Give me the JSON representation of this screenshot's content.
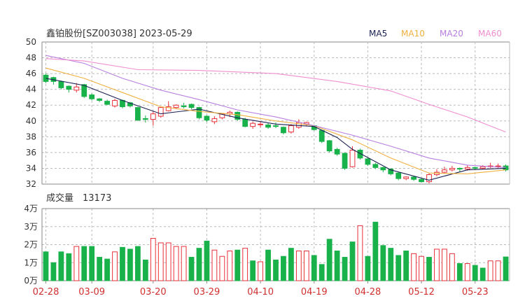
{
  "chart_data": {
    "type": "candlestick",
    "title": "鑫铂股份[SZ003038] 2023-05-29",
    "legend": [
      {
        "name": "MA5",
        "color": "#1a2050"
      },
      {
        "name": "MA10",
        "color": "#f0b040"
      },
      {
        "name": "MA20",
        "color": "#b87ee0"
      },
      {
        "name": "MA60",
        "color": "#f08ecf"
      }
    ],
    "colors": {
      "up": "#e8303a",
      "down": "#19b24a",
      "grid": "#bbbbbb",
      "axis": "#333333",
      "date": "#d03030"
    },
    "price_axis": {
      "ticks": [
        "50",
        "48",
        "46",
        "44",
        "42",
        "40",
        "38",
        "36",
        "34",
        "32"
      ],
      "min": 32,
      "max": 50
    },
    "volume": {
      "label": "成交量",
      "value": "13173",
      "ticks": [
        "4万",
        "3万",
        "2万",
        "1万",
        "0万"
      ],
      "max": 40000,
      "values": [
        16000,
        10000,
        16000,
        15000,
        19000,
        19000,
        19000,
        13000,
        12000,
        16000,
        18500,
        17500,
        19000,
        11500,
        23500,
        21000,
        21000,
        19000,
        19000,
        13000,
        18000,
        22000,
        17000,
        13500,
        16500,
        17000,
        18000,
        11000,
        10500,
        17000,
        11500,
        13500,
        18000,
        16500,
        16500,
        14000,
        9000,
        23000,
        16500,
        13000,
        21500,
        30500,
        13500,
        32500,
        19500,
        18000,
        14000,
        16500,
        15000,
        13500,
        13000,
        17500,
        17500,
        15000,
        9500,
        9500,
        8500,
        7000,
        11000,
        11000,
        13173
      ],
      "up": [
        false,
        false,
        false,
        false,
        true,
        false,
        false,
        false,
        false,
        true,
        false,
        false,
        false,
        false,
        true,
        true,
        true,
        true,
        true,
        false,
        false,
        false,
        true,
        true,
        true,
        false,
        true,
        false,
        true,
        false,
        false,
        false,
        false,
        true,
        true,
        false,
        false,
        false,
        false,
        false,
        false,
        true,
        false,
        false,
        false,
        false,
        false,
        false,
        true,
        true,
        false,
        true,
        true,
        true,
        false,
        true,
        false,
        false,
        true,
        true,
        false
      ]
    },
    "x_labels": [
      "02-28",
      "03-09",
      "03-20",
      "03-29",
      "04-10",
      "04-19",
      "04-28",
      "05-12",
      "05-23"
    ],
    "x_label_index": [
      0,
      6,
      14,
      21,
      28,
      35,
      42,
      49,
      56
    ],
    "candles": [
      [
        45.8,
        45.0,
        46.0,
        44.8
      ],
      [
        45.5,
        45.0,
        45.6,
        44.6
      ],
      [
        45.0,
        44.2,
        45.1,
        44.0
      ],
      [
        44.4,
        44.0,
        44.5,
        43.6
      ],
      [
        43.9,
        44.3,
        44.8,
        43.6
      ],
      [
        44.6,
        43.1,
        44.7,
        42.9
      ],
      [
        43.3,
        42.8,
        43.5,
        42.6
      ],
      [
        42.8,
        42.6,
        42.9,
        42.4
      ],
      [
        42.5,
        42.1,
        42.7,
        42.0
      ],
      [
        41.9,
        42.6,
        42.8,
        41.7
      ],
      [
        42.6,
        41.8,
        42.7,
        41.6
      ],
      [
        42.3,
        41.9,
        42.4,
        41.7
      ],
      [
        41.7,
        40.1,
        41.8,
        40.0
      ],
      [
        40.3,
        40.2,
        40.7,
        39.8
      ],
      [
        40.2,
        40.9,
        41.2,
        39.4
      ],
      [
        40.6,
        41.7,
        41.8,
        40.4
      ],
      [
        41.3,
        41.8,
        42.5,
        41.2
      ],
      [
        41.7,
        42.0,
        42.1,
        41.5
      ],
      [
        41.9,
        41.8,
        42.3,
        41.6
      ],
      [
        42.1,
        41.7,
        42.2,
        41.5
      ],
      [
        41.7,
        40.4,
        41.8,
        40.2
      ],
      [
        40.6,
        40.1,
        40.7,
        39.9
      ],
      [
        39.9,
        40.3,
        40.6,
        39.6
      ],
      [
        40.4,
        40.9,
        41.0,
        40.2
      ],
      [
        40.9,
        41.1,
        41.3,
        40.5
      ],
      [
        41.1,
        40.2,
        41.2,
        40.0
      ],
      [
        40.2,
        39.3,
        40.4,
        39.2
      ],
      [
        39.3,
        39.7,
        39.9,
        39.0
      ],
      [
        39.6,
        39.6,
        39.9,
        39.2
      ],
      [
        39.5,
        39.2,
        39.8,
        39.0
      ],
      [
        39.4,
        39.3,
        39.8,
        39.1
      ],
      [
        39.2,
        38.5,
        39.3,
        38.3
      ],
      [
        38.6,
        39.4,
        39.6,
        38.4
      ],
      [
        39.2,
        39.8,
        40.2,
        39.0
      ],
      [
        39.6,
        39.8,
        39.9,
        39.4
      ],
      [
        39.4,
        38.9,
        39.5,
        38.8
      ],
      [
        38.8,
        37.4,
        38.9,
        37.2
      ],
      [
        37.5,
        36.2,
        37.6,
        36.0
      ],
      [
        36.4,
        35.8,
        36.6,
        35.6
      ],
      [
        35.9,
        34.0,
        36.0,
        33.8
      ],
      [
        34.2,
        36.3,
        36.8,
        34.1
      ],
      [
        36.3,
        35.3,
        36.5,
        35.1
      ],
      [
        35.2,
        34.5,
        35.3,
        34.3
      ],
      [
        34.5,
        34.1,
        34.7,
        33.9
      ],
      [
        34.1,
        33.8,
        34.2,
        33.5
      ],
      [
        33.9,
        33.3,
        34.0,
        33.1
      ],
      [
        33.4,
        32.7,
        33.5,
        32.5
      ],
      [
        32.7,
        32.9,
        33.0,
        32.5
      ],
      [
        32.9,
        32.6,
        33.0,
        32.4
      ],
      [
        32.6,
        32.3,
        32.8,
        32.2
      ],
      [
        32.3,
        33.2,
        33.4,
        32.1
      ],
      [
        33.2,
        33.5,
        33.9,
        33.0
      ],
      [
        33.5,
        33.8,
        34.2,
        33.3
      ],
      [
        33.8,
        34.0,
        34.3,
        33.6
      ],
      [
        34.0,
        33.9,
        34.1,
        33.6
      ],
      [
        33.9,
        34.1,
        34.4,
        33.7
      ],
      [
        34.1,
        34.0,
        34.2,
        33.8
      ],
      [
        34.0,
        34.2,
        34.4,
        33.9
      ],
      [
        34.2,
        34.3,
        34.7,
        34.0
      ],
      [
        34.3,
        34.3,
        34.6,
        34.0
      ],
      [
        34.3,
        33.8,
        34.5,
        33.6
      ]
    ],
    "ma": {
      "MA5": [
        [
          0,
          45.4
        ],
        [
          5,
          44.5
        ],
        [
          10,
          42.6
        ],
        [
          15,
          40.9
        ],
        [
          20,
          41.5
        ],
        [
          25,
          40.4
        ],
        [
          30,
          39.6
        ],
        [
          35,
          39.3
        ],
        [
          38,
          37.9
        ],
        [
          40,
          36.4
        ],
        [
          45,
          33.8
        ],
        [
          50,
          32.5
        ],
        [
          55,
          33.8
        ],
        [
          60,
          34.0
        ]
      ],
      "MA10": [
        [
          0,
          46.7
        ],
        [
          5,
          45.4
        ],
        [
          10,
          43.6
        ],
        [
          15,
          41.8
        ],
        [
          20,
          41.2
        ],
        [
          25,
          40.8
        ],
        [
          30,
          40.0
        ],
        [
          35,
          39.4
        ],
        [
          40,
          37.6
        ],
        [
          45,
          35.3
        ],
        [
          50,
          33.4
        ],
        [
          55,
          33.3
        ],
        [
          60,
          33.8
        ]
      ],
      "MA20": [
        [
          0,
          48.3
        ],
        [
          5,
          47.3
        ],
        [
          10,
          45.4
        ],
        [
          15,
          43.9
        ],
        [
          20,
          42.7
        ],
        [
          25,
          41.4
        ],
        [
          30,
          40.5
        ],
        [
          35,
          39.4
        ],
        [
          40,
          38.2
        ],
        [
          45,
          36.8
        ],
        [
          50,
          35.3
        ],
        [
          55,
          34.4
        ],
        [
          60,
          34.1
        ]
      ],
      "MA60": [
        [
          0,
          47.9
        ],
        [
          5,
          47.6
        ],
        [
          12,
          46.5
        ],
        [
          20,
          46.4
        ],
        [
          30,
          46.0
        ],
        [
          38,
          45.0
        ],
        [
          45,
          43.8
        ],
        [
          50,
          42.1
        ],
        [
          55,
          40.5
        ],
        [
          60,
          38.6
        ]
      ]
    }
  }
}
